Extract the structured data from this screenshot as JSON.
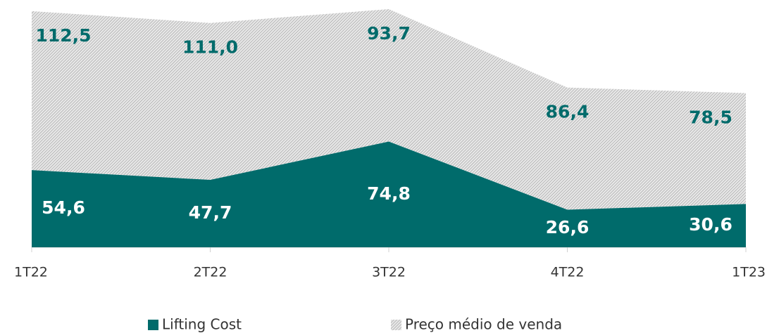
{
  "chart_data": {
    "type": "stacked_area",
    "categories": [
      "1T22",
      "2T22",
      "3T22",
      "4T22",
      "1T23"
    ],
    "series": [
      {
        "name": "Lifting Cost",
        "color": "#006b6b",
        "values": [
          54.6,
          47.7,
          74.8,
          26.6,
          30.6
        ],
        "value_labels": [
          "54,6",
          "47,7",
          "74,8",
          "26,6",
          "30,6"
        ]
      },
      {
        "name": "Preço médio de venda",
        "color": "#b0b0b0",
        "values": [
          112.5,
          111.0,
          93.7,
          86.4,
          78.5
        ],
        "value_labels": [
          "112,5",
          "111,0",
          "93,7",
          "86,4",
          "78,5"
        ]
      }
    ],
    "legend": "bottom"
  }
}
